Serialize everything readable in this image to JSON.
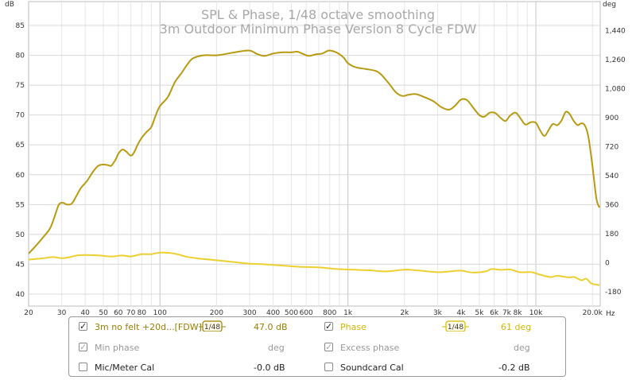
{
  "chart_data": {
    "type": "line",
    "title": "SPL & Phase, 1/48 octave smoothing",
    "subtitle": "3m Outdoor Minimum Phase Version 8 Cycle FDW",
    "y_left_unit": "dB",
    "y_right_unit": "deg",
    "x_unit": "Hz",
    "x_scale": "log",
    "xlim": [
      20,
      22000
    ],
    "ylim": [
      38,
      89
    ],
    "y2lim": [
      -270,
      1620
    ],
    "x_ticks": [
      {
        "v": 20,
        "label": "20"
      },
      {
        "v": 30,
        "label": "30"
      },
      {
        "v": 40,
        "label": "40"
      },
      {
        "v": 50,
        "label": "50"
      },
      {
        "v": 60,
        "label": "60"
      },
      {
        "v": 70,
        "label": "70"
      },
      {
        "v": 80,
        "label": "80"
      },
      {
        "v": 100,
        "label": "100"
      },
      {
        "v": 200,
        "label": "200"
      },
      {
        "v": 300,
        "label": "300"
      },
      {
        "v": 400,
        "label": "400"
      },
      {
        "v": 500,
        "label": "500"
      },
      {
        "v": 600,
        "label": "600"
      },
      {
        "v": 800,
        "label": "800"
      },
      {
        "v": 1000,
        "label": "1k"
      },
      {
        "v": 2000,
        "label": "2k"
      },
      {
        "v": 3000,
        "label": "3k"
      },
      {
        "v": 4000,
        "label": "4k"
      },
      {
        "v": 5000,
        "label": "5k"
      },
      {
        "v": 6000,
        "label": "6k"
      },
      {
        "v": 7000,
        "label": "7k"
      },
      {
        "v": 8000,
        "label": "8k"
      },
      {
        "v": 10000,
        "label": "10k"
      },
      {
        "v": 20000,
        "label": "20.0k"
      }
    ],
    "y_ticks": [
      40,
      45,
      50,
      55,
      60,
      65,
      70,
      75,
      80,
      85
    ],
    "y2_ticks": [
      {
        "v": -180,
        "label": "-180"
      },
      {
        "v": 0,
        "label": "0"
      },
      {
        "v": 180,
        "label": "180"
      },
      {
        "v": 360,
        "label": "360"
      },
      {
        "v": 540,
        "label": "540"
      },
      {
        "v": 720,
        "label": "720"
      },
      {
        "v": 900,
        "label": "900"
      },
      {
        "v": 1080,
        "label": "1,080"
      },
      {
        "v": 1260,
        "label": "1,260"
      },
      {
        "v": 1440,
        "label": "1,440"
      }
    ],
    "grid": true,
    "series": [
      {
        "name": "3m no felt +20d...[FDW]",
        "axis": "left",
        "color": "#b89a10",
        "points": [
          [
            20,
            46.8
          ],
          [
            22,
            48.2
          ],
          [
            24,
            49.6
          ],
          [
            26,
            51.0
          ],
          [
            27.5,
            53.0
          ],
          [
            29,
            55.0
          ],
          [
            30.5,
            55.3
          ],
          [
            32,
            55.0
          ],
          [
            34,
            55.2
          ],
          [
            36,
            56.5
          ],
          [
            38,
            57.8
          ],
          [
            41,
            59.0
          ],
          [
            44,
            60.5
          ],
          [
            47,
            61.5
          ],
          [
            50,
            61.7
          ],
          [
            53,
            61.6
          ],
          [
            55,
            61.5
          ],
          [
            58,
            62.5
          ],
          [
            60,
            63.5
          ],
          [
            63,
            64.2
          ],
          [
            66,
            63.9
          ],
          [
            70,
            63.2
          ],
          [
            73,
            63.8
          ],
          [
            76,
            65.0
          ],
          [
            80,
            66.2
          ],
          [
            85,
            67.2
          ],
          [
            90,
            68.0
          ],
          [
            95,
            70.0
          ],
          [
            100,
            71.5
          ],
          [
            110,
            73.0
          ],
          [
            120,
            75.5
          ],
          [
            130,
            77.0
          ],
          [
            140,
            78.5
          ],
          [
            150,
            79.5
          ],
          [
            170,
            80.0
          ],
          [
            200,
            80.0
          ],
          [
            230,
            80.3
          ],
          [
            260,
            80.6
          ],
          [
            300,
            80.8
          ],
          [
            330,
            80.2
          ],
          [
            360,
            79.9
          ],
          [
            400,
            80.3
          ],
          [
            450,
            80.5
          ],
          [
            500,
            80.5
          ],
          [
            540,
            80.6
          ],
          [
            580,
            80.2
          ],
          [
            620,
            79.9
          ],
          [
            680,
            80.2
          ],
          [
            730,
            80.3
          ],
          [
            790,
            80.8
          ],
          [
            850,
            80.6
          ],
          [
            900,
            80.2
          ],
          [
            950,
            79.6
          ],
          [
            1000,
            78.7
          ],
          [
            1100,
            78.0
          ],
          [
            1250,
            77.7
          ],
          [
            1400,
            77.4
          ],
          [
            1500,
            76.8
          ],
          [
            1650,
            75.3
          ],
          [
            1800,
            73.8
          ],
          [
            1950,
            73.2
          ],
          [
            2100,
            73.4
          ],
          [
            2300,
            73.5
          ],
          [
            2550,
            73.0
          ],
          [
            2850,
            72.3
          ],
          [
            3150,
            71.3
          ],
          [
            3450,
            70.9
          ],
          [
            3700,
            71.5
          ],
          [
            4000,
            72.6
          ],
          [
            4300,
            72.5
          ],
          [
            4650,
            71.2
          ],
          [
            5000,
            70.0
          ],
          [
            5300,
            69.7
          ],
          [
            5700,
            70.4
          ],
          [
            6100,
            70.3
          ],
          [
            6500,
            69.5
          ],
          [
            6900,
            69.0
          ],
          [
            7300,
            69.9
          ],
          [
            7800,
            70.4
          ],
          [
            8300,
            69.4
          ],
          [
            8800,
            68.4
          ],
          [
            9400,
            68.8
          ],
          [
            10000,
            68.7
          ],
          [
            10500,
            67.5
          ],
          [
            11100,
            66.5
          ],
          [
            11700,
            67.5
          ],
          [
            12300,
            68.5
          ],
          [
            13000,
            68.3
          ],
          [
            13700,
            69.1
          ],
          [
            14400,
            70.5
          ],
          [
            15100,
            70.2
          ],
          [
            15900,
            69.0
          ],
          [
            16700,
            68.3
          ],
          [
            17400,
            68.6
          ],
          [
            18200,
            68.3
          ],
          [
            19000,
            66.5
          ],
          [
            20000,
            61.5
          ],
          [
            21000,
            56.0
          ],
          [
            21800,
            54.5
          ]
        ]
      },
      {
        "name": "Phase",
        "axis": "right",
        "color": "#ecd030",
        "points": [
          [
            20,
            18
          ],
          [
            24,
            27
          ],
          [
            27,
            34
          ],
          [
            30,
            27
          ],
          [
            33,
            33
          ],
          [
            37,
            46
          ],
          [
            45,
            46
          ],
          [
            55,
            38
          ],
          [
            63,
            44
          ],
          [
            70,
            38
          ],
          [
            80,
            52
          ],
          [
            90,
            52
          ],
          [
            100,
            62
          ],
          [
            120,
            55
          ],
          [
            140,
            35
          ],
          [
            170,
            22
          ],
          [
            200,
            14
          ],
          [
            250,
            3
          ],
          [
            300,
            -7
          ],
          [
            350,
            -10
          ],
          [
            450,
            -19
          ],
          [
            550,
            -26
          ],
          [
            700,
            -30
          ],
          [
            850,
            -39
          ],
          [
            1000,
            -43
          ],
          [
            1300,
            -48
          ],
          [
            1600,
            -55
          ],
          [
            2000,
            -44
          ],
          [
            2400,
            -50
          ],
          [
            3000,
            -60
          ],
          [
            3500,
            -55
          ],
          [
            4000,
            -50
          ],
          [
            4600,
            -62
          ],
          [
            5400,
            -55
          ],
          [
            5800,
            -40
          ],
          [
            6500,
            -45
          ],
          [
            7300,
            -43
          ],
          [
            8200,
            -60
          ],
          [
            9500,
            -60
          ],
          [
            10500,
            -75
          ],
          [
            12000,
            -90
          ],
          [
            13000,
            -82
          ],
          [
            15000,
            -92
          ],
          [
            16000,
            -90
          ],
          [
            17500,
            -110
          ],
          [
            18500,
            -100
          ],
          [
            19800,
            -130
          ],
          [
            21800,
            -140
          ]
        ]
      }
    ]
  },
  "legend": {
    "row1": {
      "checkbox": "✓",
      "name": "3m no felt +20d...[FDW]",
      "smoothing": "1/48",
      "value": "47.0 dB",
      "right_checkbox": "✓",
      "right_name": "Phase",
      "right_smoothing": "1/48",
      "right_value": "61 deg"
    },
    "row2": {
      "checkbox": "✓",
      "name": "Min phase",
      "value": "deg",
      "right_checkbox": "✓",
      "right_name": "Excess phase",
      "right_value": "deg"
    },
    "row3": {
      "checkbox": "",
      "name": "Mic/Meter Cal",
      "value": "-0.0 dB",
      "right_checkbox": "",
      "right_name": "Soundcard Cal",
      "right_value": "-0.2 dB"
    }
  }
}
